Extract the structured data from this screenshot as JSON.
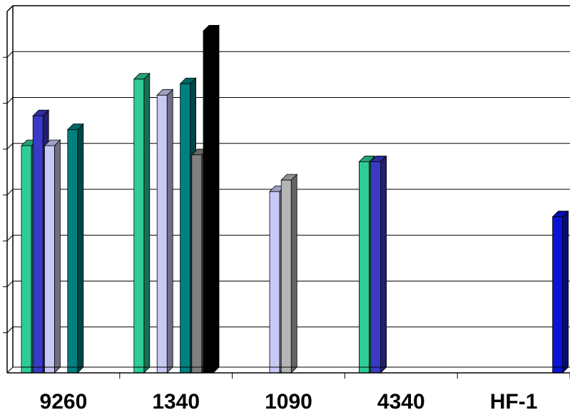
{
  "chart_data": {
    "type": "bar",
    "title": "",
    "xlabel": "",
    "ylabel": "",
    "ylim": [
      0,
      8
    ],
    "grid": true,
    "categories": [
      "9260",
      "1340",
      "1090",
      "4340",
      "HF-1"
    ],
    "series": [
      {
        "color": "#2ecc99",
        "values": [
          4.95,
          6.4,
          null,
          4.6,
          null
        ]
      },
      {
        "color": "#3a3ac6",
        "values": [
          5.6,
          null,
          null,
          4.6,
          null
        ]
      },
      {
        "color": "#c8c8f5",
        "values": [
          4.95,
          6.05,
          3.95,
          null,
          null
        ]
      },
      {
        "color": "#b5b5b5",
        "values": [
          null,
          null,
          4.2,
          null,
          null
        ]
      },
      {
        "color": "#008080",
        "values": [
          5.3,
          6.3,
          null,
          null,
          null
        ]
      },
      {
        "color": "#808080",
        "values": [
          null,
          4.75,
          null,
          null,
          null
        ]
      },
      {
        "color": "#000000",
        "values": [
          null,
          7.45,
          null,
          null,
          null
        ]
      },
      {
        "color": "#0a14d6",
        "values": [
          null,
          null,
          null,
          null,
          3.4
        ]
      }
    ]
  }
}
